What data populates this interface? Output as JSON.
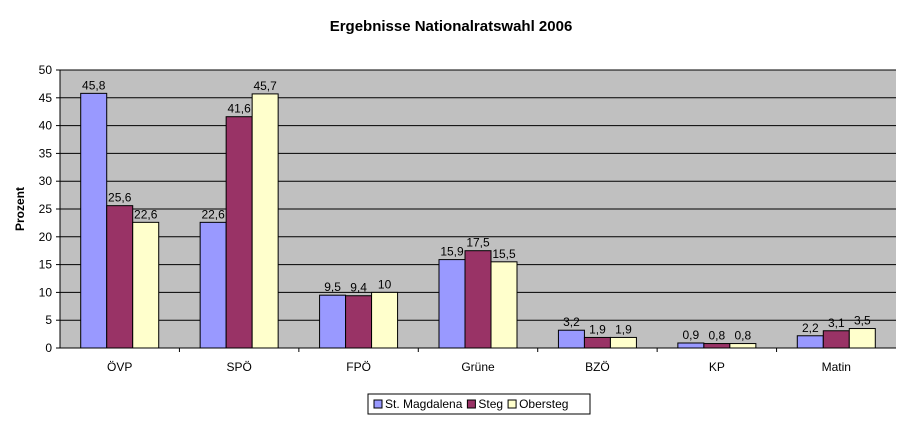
{
  "chart_data": {
    "type": "bar",
    "title": "Ergebnisse Nationalratswahl 2006",
    "ylabel": "Prozent",
    "xlabel": "",
    "ylim": [
      0,
      50
    ],
    "yticks": [
      0,
      5,
      10,
      15,
      20,
      25,
      30,
      35,
      40,
      45,
      50
    ],
    "grid": true,
    "legend": "bottom",
    "categories": [
      "ÖVP",
      "SPÖ",
      "FPÖ",
      "Grüne",
      "BZÖ",
      "KP",
      "Matin"
    ],
    "series": [
      {
        "name": "St. Magdalena",
        "color": "#9999ff",
        "values": [
          45.8,
          22.6,
          9.5,
          15.9,
          3.2,
          0.9,
          2.2
        ],
        "labels": [
          "45,8",
          "22,6",
          "9,5",
          "15,9",
          "3,2",
          "0,9",
          "2,2"
        ]
      },
      {
        "name": "Steg",
        "color": "#993366",
        "values": [
          25.6,
          41.6,
          9.4,
          17.5,
          1.9,
          0.8,
          3.1
        ],
        "labels": [
          "25,6",
          "41,6",
          "9,4",
          "17,5",
          "1,9",
          "0,8",
          "3,1"
        ]
      },
      {
        "name": "Obersteg",
        "color": "#ffffcc",
        "values": [
          22.6,
          45.7,
          10,
          15.5,
          1.9,
          0.8,
          3.5
        ],
        "labels": [
          "22,6",
          "45,7",
          "10",
          "15,5",
          "1,9",
          "0,8",
          "3,5"
        ]
      }
    ]
  },
  "colors": {
    "plot_background": "#c0c0c0"
  }
}
